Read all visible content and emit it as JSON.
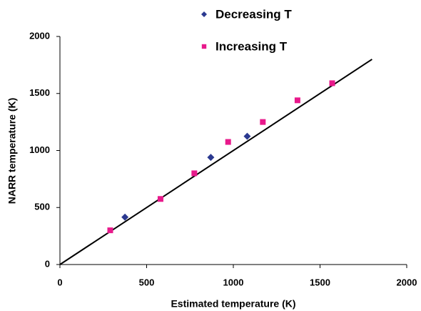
{
  "chart_data": {
    "type": "scatter",
    "xlabel": "Estimated temperature (K)",
    "ylabel": "NARR temperature (K)",
    "xlim": [
      0,
      2000
    ],
    "ylim": [
      0,
      2000
    ],
    "xticks": [
      0,
      500,
      1000,
      1500,
      2000
    ],
    "yticks": [
      0,
      500,
      1000,
      1500,
      2000
    ],
    "grid": false,
    "series": [
      {
        "name": "Decreasing T",
        "color": "#2b3990",
        "marker": "diamond",
        "x": [
          375,
          870,
          1080
        ],
        "values": [
          415,
          940,
          1125
        ]
      },
      {
        "name": "Increasing T",
        "color": "#e8198b",
        "marker": "square",
        "x": [
          290,
          580,
          775,
          970,
          1170,
          1370,
          1570
        ],
        "values": [
          300,
          575,
          800,
          1075,
          1250,
          1440,
          1590
        ]
      }
    ],
    "line": {
      "color": "#000000",
      "x": [
        0,
        1800
      ],
      "values": [
        0,
        1800
      ]
    }
  }
}
